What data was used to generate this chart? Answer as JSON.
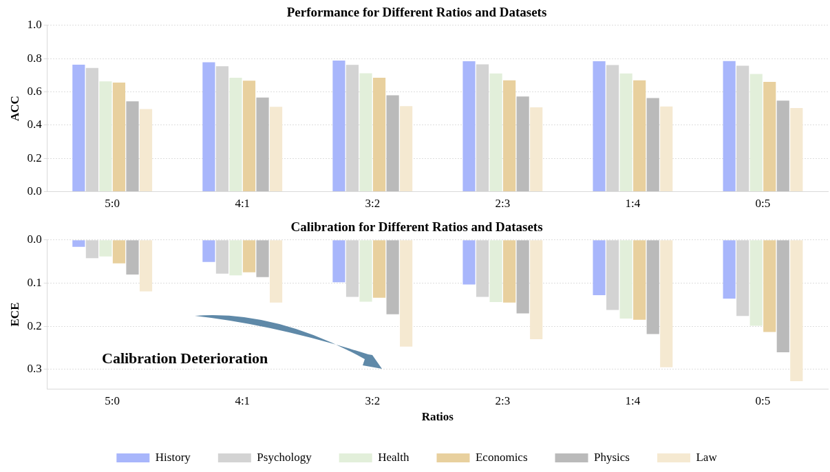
{
  "chart_data": [
    {
      "type": "bar",
      "title": "Performance for Different Ratios and Datasets",
      "ylabel": "ACC",
      "categories": [
        "5:0",
        "4:1",
        "3:2",
        "2:3",
        "1:4",
        "0:5"
      ],
      "series": [
        {
          "color": "#a8b6fb",
          "values": [
            0.763,
            0.778,
            0.788,
            0.784,
            0.784,
            0.785
          ]
        },
        {
          "color": "#d3d3d3",
          "values": [
            0.744,
            0.754,
            0.762,
            0.766,
            0.761,
            0.757
          ]
        },
        {
          "color": "#e2efda",
          "values": [
            0.663,
            0.685,
            0.712,
            0.711,
            0.711,
            0.708
          ]
        },
        {
          "color": "#e8d09e",
          "values": [
            0.656,
            0.667,
            0.685,
            0.669,
            0.669,
            0.66
          ]
        },
        {
          "color": "#bababa",
          "values": [
            0.543,
            0.566,
            0.579,
            0.572,
            0.563,
            0.547
          ]
        },
        {
          "color": "#f5e9d1",
          "values": [
            0.497,
            0.51,
            0.514,
            0.507,
            0.512,
            0.503
          ]
        }
      ],
      "ylim": [
        0,
        1.0
      ],
      "yticks": [
        {
          "value": 0,
          "label": "0.0"
        },
        {
          "value": 0.2,
          "label": "0.2"
        },
        {
          "value": 0.4,
          "label": "0.4"
        },
        {
          "value": 0.6,
          "label": "0.6"
        },
        {
          "value": 0.8,
          "label": "0.8"
        },
        {
          "value": 1.0,
          "label": "1.0"
        }
      ],
      "grid": "y",
      "legend": false
    },
    {
      "type": "bar",
      "title": "Calibration for Different Ratios and Datasets",
      "xlabel": "Ratios",
      "ylabel": "ECE",
      "categories": [
        "5:0",
        "4:1",
        "3:2",
        "2:3",
        "1:4",
        "0:5"
      ],
      "series": [
        {
          "name": "History",
          "color": "#a8b6fb",
          "values": [
            0.016,
            0.051,
            0.098,
            0.103,
            0.128,
            0.136
          ]
        },
        {
          "name": "Psychology",
          "color": "#d3d3d3",
          "values": [
            0.042,
            0.078,
            0.132,
            0.132,
            0.162,
            0.176
          ]
        },
        {
          "name": "Health",
          "color": "#e2efda",
          "values": [
            0.038,
            0.082,
            0.143,
            0.144,
            0.182,
            0.199
          ]
        },
        {
          "name": "Economics",
          "color": "#e8d09e",
          "values": [
            0.054,
            0.075,
            0.134,
            0.145,
            0.185,
            0.213
          ]
        },
        {
          "name": "Physics",
          "color": "#bababa",
          "values": [
            0.08,
            0.086,
            0.172,
            0.17,
            0.218,
            0.26
          ]
        },
        {
          "name": "Law",
          "color": "#f5e9d1",
          "values": [
            0.119,
            0.145,
            0.247,
            0.23,
            0.295,
            0.327
          ]
        }
      ],
      "ylim": [
        0.345,
        0
      ],
      "yticks": [
        {
          "value": 0,
          "label": "0.0"
        },
        {
          "value": 0.1,
          "label": "0.1"
        },
        {
          "value": 0.2,
          "label": "0.2"
        },
        {
          "value": 0.3,
          "label": "0.3"
        }
      ],
      "grid": "y",
      "legend": "bottom",
      "annotations": [
        "Calibration Deterioration"
      ]
    }
  ]
}
